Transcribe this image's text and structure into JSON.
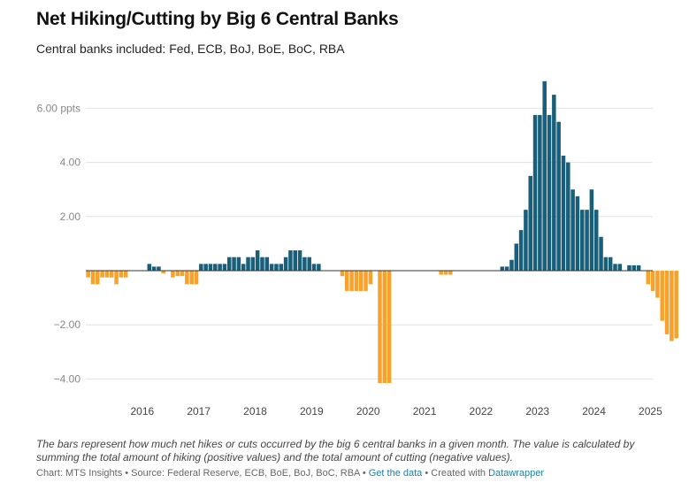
{
  "title": "Net Hiking/Cutting by Big 6 Central Banks",
  "subtitle": "Central banks included: Fed, ECB, BoJ, BoE, BoC, RBA",
  "notes": "The bars represent how much net hikes or cuts occurred by the big 6 central banks in a given month. The value is calculated by summing the total amount of hiking (positive values) and the total amount of cutting (negative values).",
  "footer": {
    "source": "Chart: MTS Insights • Source: Federal Reserve, ECB, BoE, BoJ, BoC, RBA •",
    "get_data": "Get the data",
    "created_with": "• Created with",
    "datawrapper": "Datawrapper"
  },
  "colors": {
    "positive": "#1a5f7a",
    "negative": "#f8a22b",
    "grid": "#e2e2e2",
    "zero": "#333333"
  },
  "chart_data": {
    "type": "bar",
    "title": "Net Hiking/Cutting by Big 6 Central Banks",
    "ylim": [
      -4.4,
      7.2
    ],
    "y_ticks": [
      {
        "value": 6,
        "label": "6.00 ppts"
      },
      {
        "value": 4,
        "label": "4.00"
      },
      {
        "value": 2,
        "label": "2.00"
      },
      {
        "value": -2,
        "label": "−2.00"
      },
      {
        "value": -4,
        "label": "−4.00"
      }
    ],
    "x_ticks": [
      "2016",
      "2017",
      "2018",
      "2019",
      "2020",
      "2021",
      "2022",
      "2023",
      "2024",
      "2025"
    ],
    "x_start": "2015-01",
    "values": [
      -0.25,
      -0.5,
      -0.5,
      -0.25,
      -0.25,
      -0.25,
      -0.5,
      -0.25,
      -0.25,
      0,
      0,
      0,
      0,
      0.25,
      0.15,
      0.15,
      -0.1,
      0,
      -0.25,
      -0.2,
      -0.2,
      -0.5,
      -0.5,
      -0.5,
      0.25,
      0.25,
      0.25,
      0.25,
      0.25,
      0.25,
      0.5,
      0.5,
      0.5,
      0.25,
      0.5,
      0.5,
      0.75,
      0.5,
      0.5,
      0.25,
      0.25,
      0.25,
      0.5,
      0.75,
      0.75,
      0.75,
      0.5,
      0.5,
      0.25,
      0.25,
      0,
      0,
      0,
      0,
      -0.2,
      -0.75,
      -0.75,
      -0.75,
      -0.75,
      -0.75,
      -0.5,
      0,
      -4.15,
      -4.15,
      -4.15,
      0,
      0,
      0,
      0,
      0,
      0,
      0,
      0,
      0,
      0,
      -0.15,
      -0.15,
      -0.15,
      0,
      0,
      0,
      0,
      0,
      0,
      0,
      0,
      0,
      0,
      0.15,
      0.15,
      0.4,
      1.0,
      1.5,
      2.25,
      3.5,
      5.75,
      5.75,
      7.0,
      5.75,
      6.5,
      5.5,
      4.25,
      4.0,
      3.0,
      2.75,
      2.25,
      2.25,
      3.0,
      2.25,
      1.25,
      0.5,
      0.5,
      0.25,
      0.25,
      0,
      0.2,
      0.2,
      0.2,
      0,
      -0.5,
      -0.75,
      -1.0,
      -1.85,
      -2.35,
      -2.6,
      -2.5
    ]
  }
}
